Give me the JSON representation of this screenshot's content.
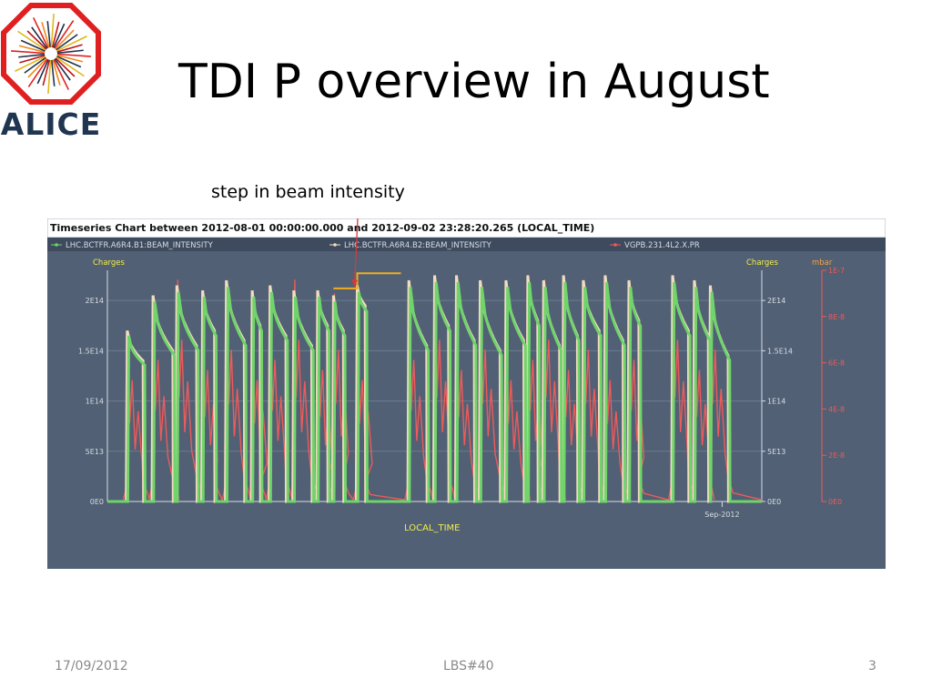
{
  "slide": {
    "title": "TDI P overview in August",
    "annotation": "step in beam intensity",
    "footer_date": "17/09/2012",
    "footer_center": "LBS#40",
    "page_number": "3"
  },
  "logo": {
    "text": "ALICE",
    "icon": "alice-logo-icon"
  },
  "colors": {
    "chart_bg": "#516074",
    "legend_bg": "#3e4b5e",
    "series_b1": "#6fd46a",
    "series_b2": "#f1dcbf",
    "series_vac": "#ef5a5a",
    "axis_left_title": "#f2ee4a",
    "axis_right_title": "#f2a24a",
    "annotation_line": "#f2ad1c",
    "arrow": "#d63a3a"
  },
  "chart_data": {
    "type": "line",
    "title": "Timeseries Chart between 2012-08-01 00:00:00.000 and 2012-09-02 23:28:20.265 (LOCAL_TIME)",
    "xlabel": "LOCAL_TIME",
    "x_tick_labels": [
      "Sep-2012"
    ],
    "x_range": [
      "2012-08-01",
      "2012-09-02"
    ],
    "y_left": {
      "title": "Charges",
      "ticks": [
        "0E0",
        "5E13",
        "1E14",
        "1.5E14",
        "2E14"
      ],
      "range": [
        0,
        230000000000000.0
      ]
    },
    "y_right_charges": {
      "title": "Charges",
      "ticks": [
        "0E0",
        "5E13",
        "1E14",
        "1.5E14",
        "2E14"
      ]
    },
    "y_right_pressure": {
      "title": "mbar",
      "ticks": [
        "0E0",
        "2E-8",
        "4E-8",
        "6E-8",
        "8E-8",
        "1E-7"
      ],
      "range": [
        0,
        1e-07
      ]
    },
    "legend": [
      "LHC.BCTFR.A6R4.B1:BEAM_INTENSITY",
      "LHC.BCTFR.A6R4.B2:BEAM_INTENSITY",
      "VGPB.231.4L2.X.PR"
    ],
    "legend_position": "top",
    "grid": true,
    "fills": [
      {
        "start": 1.0,
        "peak": 170000000000000.0,
        "end": 140000000000000.0,
        "dur": 0.8
      },
      {
        "start": 2.3,
        "peak": 205000000000000.0,
        "end": 150000000000000.0,
        "dur": 1.0
      },
      {
        "start": 3.5,
        "peak": 215000000000000.0,
        "end": 155000000000000.0,
        "dur": 1.0
      },
      {
        "start": 4.8,
        "peak": 210000000000000.0,
        "end": 170000000000000.0,
        "dur": 0.6
      },
      {
        "start": 6.0,
        "peak": 220000000000000.0,
        "end": 160000000000000.0,
        "dur": 0.9
      },
      {
        "start": 7.3,
        "peak": 210000000000000.0,
        "end": 175000000000000.0,
        "dur": 0.4
      },
      {
        "start": 8.2,
        "peak": 215000000000000.0,
        "end": 165000000000000.0,
        "dur": 0.8
      },
      {
        "start": 9.4,
        "peak": 210000000000000.0,
        "end": 155000000000000.0,
        "dur": 0.9
      },
      {
        "start": 10.6,
        "peak": 210000000000000.0,
        "end": 175000000000000.0,
        "dur": 0.5
      },
      {
        "start": 11.4,
        "peak": 205000000000000.0,
        "end": 170000000000000.0,
        "dur": 0.5
      },
      {
        "start": 12.6,
        "peak": 215000000000000.0,
        "end": 195000000000000.0,
        "dur": 0.4
      },
      {
        "start": 15.2,
        "peak": 220000000000000.0,
        "end": 155000000000000.0,
        "dur": 0.9
      },
      {
        "start": 16.5,
        "peak": 225000000000000.0,
        "end": 175000000000000.0,
        "dur": 0.7
      },
      {
        "start": 17.6,
        "peak": 225000000000000.0,
        "end": 160000000000000.0,
        "dur": 0.9
      },
      {
        "start": 18.8,
        "peak": 220000000000000.0,
        "end": 150000000000000.0,
        "dur": 1.0
      },
      {
        "start": 20.1,
        "peak": 220000000000000.0,
        "end": 160000000000000.0,
        "dur": 0.9
      },
      {
        "start": 21.2,
        "peak": 225000000000000.0,
        "end": 180000000000000.0,
        "dur": 0.5
      },
      {
        "start": 22.0,
        "peak": 220000000000000.0,
        "end": 155000000000000.0,
        "dur": 0.8
      },
      {
        "start": 23.0,
        "peak": 225000000000000.0,
        "end": 165000000000000.0,
        "dur": 0.7
      },
      {
        "start": 24.0,
        "peak": 220000000000000.0,
        "end": 170000000000000.0,
        "dur": 0.8
      },
      {
        "start": 25.1,
        "peak": 225000000000000.0,
        "end": 160000000000000.0,
        "dur": 0.9
      },
      {
        "start": 26.3,
        "peak": 220000000000000.0,
        "end": 180000000000000.0,
        "dur": 0.5
      },
      {
        "start": 28.5,
        "peak": 225000000000000.0,
        "end": 170000000000000.0,
        "dur": 0.8
      },
      {
        "start": 29.6,
        "peak": 220000000000000.0,
        "end": 165000000000000.0,
        "dur": 0.7
      },
      {
        "start": 30.4,
        "peak": 215000000000000.0,
        "end": 145000000000000.0,
        "dur": 0.9
      }
    ],
    "intensity_step": {
      "x_start": 11.4,
      "x_step": 12.6,
      "x_end": 14.8,
      "y_before": 212000000000000.0,
      "y_after": 227000000000000.0
    }
  }
}
